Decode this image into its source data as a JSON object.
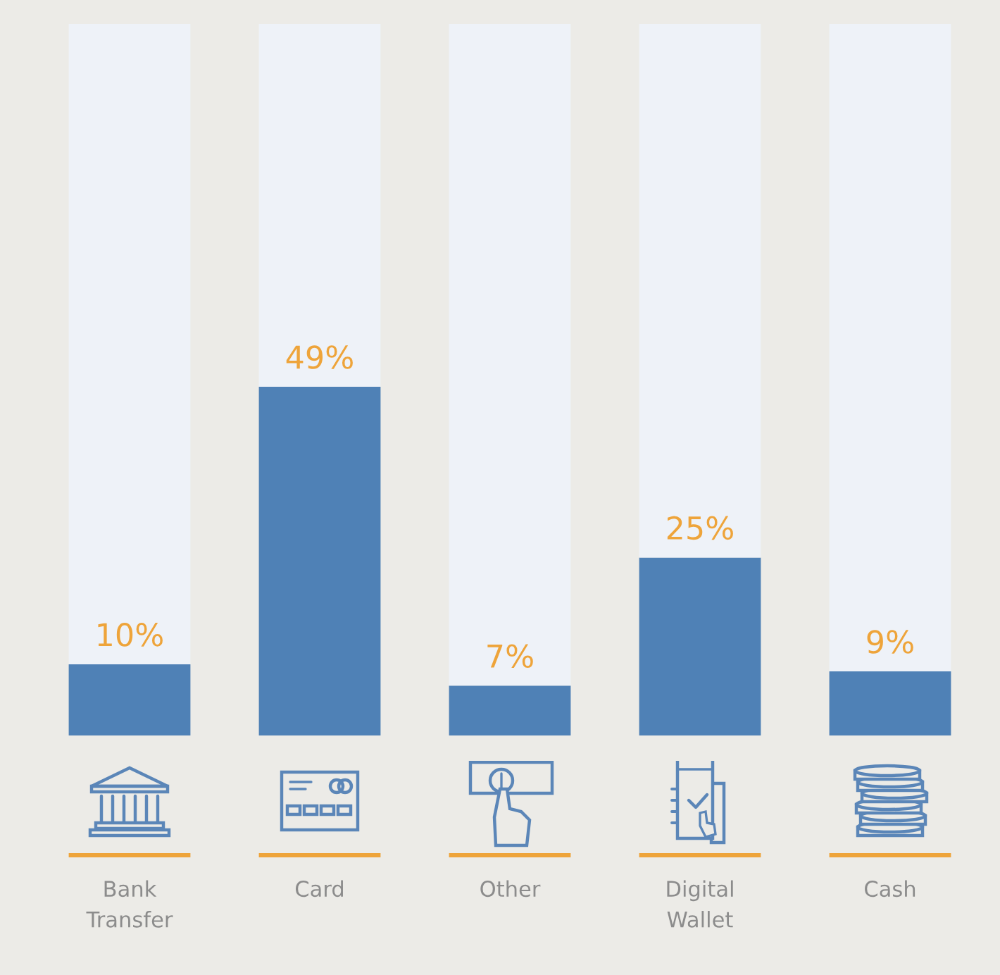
{
  "chart_data": {
    "type": "bar",
    "categories": [
      "Bank Transfer",
      "Card",
      "Other",
      "Digital Wallet",
      "Cash"
    ],
    "stacked": true,
    "series": [
      {
        "color": "#4f81b6",
        "values": [
          10,
          49,
          7,
          25,
          9
        ],
        "value_labels": [
          "10%",
          "49%",
          "7%",
          "25%",
          "9%"
        ]
      },
      {
        "color": "#eef2f8",
        "values": [
          90,
          51,
          93,
          75,
          91
        ]
      }
    ],
    "ylim": [
      0,
      100
    ],
    "tick_labels": "x"
  }
}
